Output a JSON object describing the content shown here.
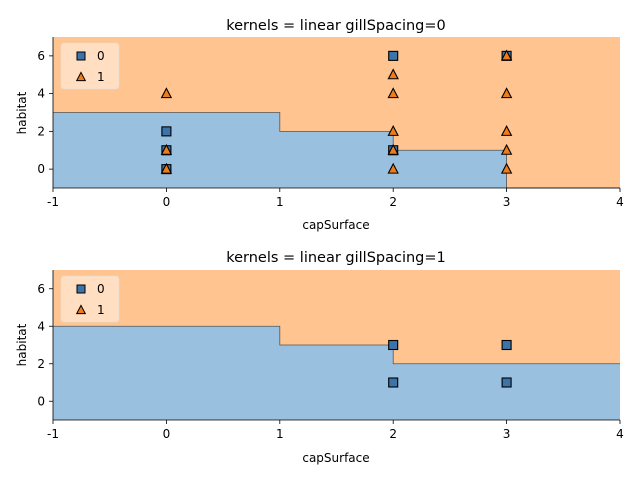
{
  "chart_data": [
    {
      "type": "scatter",
      "title": "kernels = linear gillSpacing=0",
      "xlabel": "capSurface",
      "ylabel": "habitat",
      "xlim": [
        -1,
        4
      ],
      "ylim": [
        -1,
        7
      ],
      "xticks": [
        "-1",
        "0",
        "1",
        "2",
        "3",
        "4"
      ],
      "yticks": [
        "0",
        "2",
        "4",
        "6"
      ],
      "legend_position": "upper-left",
      "region_colors": {
        "0": "#9ac0df",
        "1": "#ffc48f"
      },
      "decision_boundary": [
        [
          -1,
          3
        ],
        [
          1,
          3
        ],
        [
          1,
          2
        ],
        [
          2,
          2
        ],
        [
          2,
          1
        ],
        [
          3,
          1
        ],
        [
          3,
          -1
        ],
        [
          4,
          -1
        ]
      ],
      "series": [
        {
          "name": "0",
          "marker": "square",
          "color": "#3c73a8",
          "x": [
            0,
            0,
            0,
            2,
            2,
            3
          ],
          "y": [
            2,
            1,
            0,
            6,
            1,
            6
          ]
        },
        {
          "name": "1",
          "marker": "triangle",
          "color": "#ee7c1a",
          "x": [
            0,
            0,
            0,
            2,
            2,
            2,
            2,
            2,
            3,
            3,
            3,
            3,
            3
          ],
          "y": [
            4,
            1,
            0,
            5,
            4,
            2,
            1,
            0,
            4,
            2,
            1,
            0,
            6
          ]
        }
      ]
    },
    {
      "type": "scatter",
      "title": "kernels = linear gillSpacing=1",
      "xlabel": "capSurface",
      "ylabel": "habitat",
      "xlim": [
        -1,
        4
      ],
      "ylim": [
        -1,
        7
      ],
      "xticks": [
        "-1",
        "0",
        "1",
        "2",
        "3",
        "4"
      ],
      "yticks": [
        "0",
        "2",
        "4",
        "6"
      ],
      "legend_position": "upper-left",
      "region_colors": {
        "0": "#9ac0df",
        "1": "#ffc48f"
      },
      "decision_boundary": [
        [
          -1,
          4
        ],
        [
          1,
          4
        ],
        [
          1,
          3
        ],
        [
          2,
          3
        ],
        [
          2,
          2
        ],
        [
          4,
          2
        ]
      ],
      "series": [
        {
          "name": "0",
          "marker": "square",
          "color": "#3c73a8",
          "x": [
            2,
            2,
            3,
            3
          ],
          "y": [
            3,
            1,
            3,
            1
          ]
        },
        {
          "name": "1",
          "marker": "triangle",
          "color": "#ee7c1a",
          "x": [],
          "y": []
        }
      ]
    }
  ]
}
